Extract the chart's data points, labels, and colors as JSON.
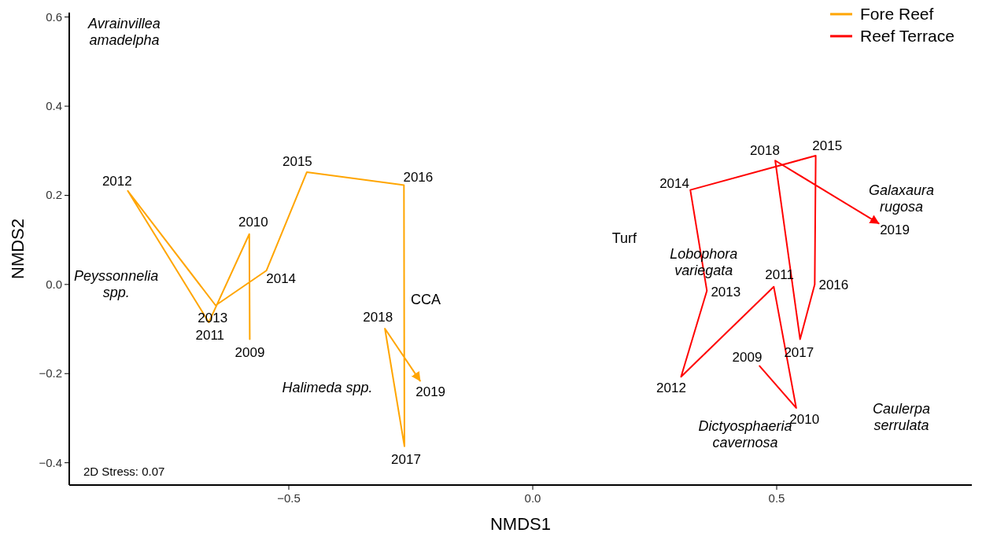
{
  "chart_data": {
    "type": "line",
    "xlabel": "NMDS1",
    "ylabel": "NMDS2",
    "xlim": [
      -0.95,
      0.9
    ],
    "ylim": [
      -0.45,
      0.61
    ],
    "xticks": [
      {
        "value": -0.5,
        "label": "−0.5"
      },
      {
        "value": 0,
        "label": "0.0"
      },
      {
        "value": 0.5,
        "label": "0.5"
      }
    ],
    "yticks": [
      {
        "value": -0.4,
        "label": "−0.4"
      },
      {
        "value": -0.2,
        "label": "−0.2"
      },
      {
        "value": 0,
        "label": "0.0"
      },
      {
        "value": 0.2,
        "label": "0.2"
      },
      {
        "value": 0.4,
        "label": "0.4"
      },
      {
        "value": 0.6,
        "label": "0.6"
      }
    ],
    "grid": false,
    "legend": "top right",
    "marker": "none",
    "line_style": "solid",
    "series": [
      {
        "name": "Fore Reef",
        "color": "#ffa500",
        "x": [
          -0.58,
          -0.581,
          -0.664,
          -0.83,
          -0.65,
          -0.546,
          -0.463,
          -0.264,
          -0.263,
          -0.303,
          -0.231
        ],
        "values": [
          -0.123,
          0.113,
          -0.085,
          0.21,
          -0.047,
          0.031,
          0.252,
          0.223,
          -0.363,
          -0.099,
          -0.216
        ]
      },
      {
        "name": "Reef Terrace",
        "color": "#ff0000",
        "x": [
          0.465,
          0.54,
          0.494,
          0.304,
          0.357,
          0.323,
          0.58,
          0.578,
          0.548,
          0.497,
          0.709
        ],
        "values": [
          -0.183,
          -0.277,
          -0.005,
          -0.207,
          -0.014,
          0.212,
          0.289,
          0.0,
          -0.123,
          0.278,
          0.137
        ]
      }
    ],
    "annotations": [
      {
        "text": "2009",
        "x": -0.58,
        "y": -0.123
      },
      {
        "text": "2010",
        "x": -0.581,
        "y": 0.113
      },
      {
        "text": "2011",
        "x": -0.664,
        "y": -0.085
      },
      {
        "text": "2012",
        "x": -0.83,
        "y": 0.21
      },
      {
        "text": "2013",
        "x": -0.65,
        "y": -0.047
      },
      {
        "text": "2014",
        "x": -0.546,
        "y": 0.031
      },
      {
        "text": "2015",
        "x": -0.463,
        "y": 0.252
      },
      {
        "text": "2016",
        "x": -0.264,
        "y": 0.223
      },
      {
        "text": "2017",
        "x": -0.263,
        "y": -0.363
      },
      {
        "text": "2018",
        "x": -0.303,
        "y": -0.099
      },
      {
        "text": "2019",
        "x": -0.231,
        "y": -0.216
      },
      {
        "text": "2009",
        "x": 0.465,
        "y": -0.183
      },
      {
        "text": "2010",
        "x": 0.54,
        "y": -0.277
      },
      {
        "text": "2011",
        "x": 0.494,
        "y": -0.005
      },
      {
        "text": "2012",
        "x": 0.304,
        "y": -0.207
      },
      {
        "text": "2013",
        "x": 0.357,
        "y": -0.014
      },
      {
        "text": "2014",
        "x": 0.323,
        "y": 0.212
      },
      {
        "text": "2015",
        "x": 0.58,
        "y": 0.289
      },
      {
        "text": "2016",
        "x": 0.578,
        "y": 0.0
      },
      {
        "text": "2017",
        "x": 0.548,
        "y": -0.123
      },
      {
        "text": "2018",
        "x": 0.497,
        "y": 0.278
      },
      {
        "text": "2019",
        "x": 0.709,
        "y": 0.137
      },
      "Avrainvillea\namadelpha",
      "Peyssonnelia\nspp.",
      "Halimeda spp.",
      "CCA",
      "Turf",
      "Lobophora\nvariegata",
      "Galaxaura\nrugosa",
      "Caulerpa\nserrulata",
      "Dictyosphaeria\ncavernosa",
      "2D Stress: 0.07"
    ]
  }
}
